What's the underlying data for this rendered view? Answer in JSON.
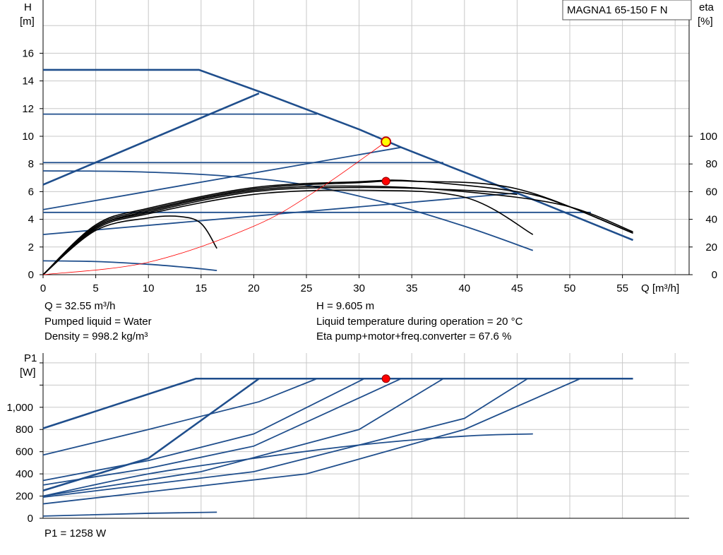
{
  "title": "MAGNA1 65-150 F N",
  "colors": {
    "curve_blue": "#1f4e8c",
    "eta_black": "#000000",
    "system_curve": "#ff0000",
    "grid": "#c8c8c8",
    "op_point_fill": "#ff0000",
    "op_point_yellow": "#ffff00"
  },
  "info": {
    "q": "Q = 32.55 m³/h",
    "h": "H = 9.605 m",
    "liquid": "Pumped liquid = Water",
    "temp": "Liquid temperature during operation = 20 °C",
    "density": "Density = 998.2 kg/m³",
    "eta": "Eta pump+motor+freq.converter = 67.6 %",
    "p1": "P1 = 1258 W"
  },
  "chart_data": [
    {
      "type": "line",
      "title": "MAGNA1 65-150 F N",
      "ylabel_left": "H",
      "ylabel_left_unit": "[m]",
      "ylabel_right": "eta",
      "ylabel_right_unit": "[%]",
      "xlabel": "Q [m³/h]",
      "xlim": [
        0,
        60
      ],
      "ylim": [
        0,
        20
      ],
      "y2lim": [
        0,
        200
      ],
      "grid": true,
      "xticks": [
        "0",
        "5",
        "10",
        "15",
        "20",
        "25",
        "30",
        "35",
        "40",
        "45",
        "50",
        "55"
      ],
      "yticks": [
        "0",
        "2",
        "4",
        "6",
        "8",
        "10",
        "12",
        "14",
        "16"
      ],
      "y2ticks": [
        "0",
        "20",
        "40",
        "60",
        "80",
        "100"
      ],
      "head_curves": [
        {
          "kind": "max",
          "points": [
            [
              0,
              14.8
            ],
            [
              14.8,
              14.8
            ],
            [
              21,
              13.1
            ],
            [
              30,
              10.5
            ],
            [
              34,
              9.2
            ],
            [
              45,
              5.9
            ],
            [
              56,
              2.5
            ]
          ]
        },
        {
          "kind": "const-curve",
          "points": [
            [
              0,
              11.6
            ],
            [
              26,
              11.6
            ]
          ]
        },
        {
          "kind": "const-curve",
          "points": [
            [
              0,
              8.1
            ],
            [
              38,
              8.1
            ]
          ]
        },
        {
          "kind": "const-curve",
          "points": [
            [
              0,
              4.5
            ],
            [
              52,
              4.5
            ]
          ]
        },
        {
          "kind": "prop-pressure",
          "points": [
            [
              0,
              6.5
            ],
            [
              20.5,
              13.1
            ]
          ]
        },
        {
          "kind": "prop-pressure",
          "points": [
            [
              0,
              4.7
            ],
            [
              34,
              9.2
            ]
          ]
        },
        {
          "kind": "prop-pressure",
          "points": [
            [
              0,
              2.9
            ],
            [
              45,
              5.9
            ]
          ]
        },
        {
          "kind": "curve",
          "points": [
            [
              0,
              7.5
            ],
            [
              8,
              7.45
            ],
            [
              16,
              7.2
            ],
            [
              24,
              6.6
            ],
            [
              32,
              5.3
            ],
            [
              40,
              3.5
            ],
            [
              46.5,
              1.75
            ]
          ]
        },
        {
          "kind": "curve",
          "points": [
            [
              0,
              1.0
            ],
            [
              5,
              0.95
            ],
            [
              10,
              0.75
            ],
            [
              14,
              0.5
            ],
            [
              16.5,
              0.3
            ]
          ]
        }
      ],
      "efficiency_curves": [
        {
          "points": [
            [
              0,
              0
            ],
            [
              5,
              32
            ],
            [
              10,
              41
            ],
            [
              13,
              42
            ],
            [
              15,
              37
            ],
            [
              16.5,
              19
            ]
          ]
        },
        {
          "points": [
            [
              0,
              0
            ],
            [
              5,
              33
            ],
            [
              10,
              44
            ],
            [
              20,
              58
            ],
            [
              30,
              61
            ],
            [
              40,
              56
            ],
            [
              46.5,
              29
            ]
          ]
        },
        {
          "points": [
            [
              0,
              0
            ],
            [
              5,
              34
            ],
            [
              10,
              45
            ],
            [
              20,
              60
            ],
            [
              30,
              63
            ],
            [
              40,
              61
            ],
            [
              45,
              58
            ]
          ]
        },
        {
          "points": [
            [
              0,
              0
            ],
            [
              5,
              35
            ],
            [
              10,
              47
            ],
            [
              20,
              62
            ],
            [
              30,
              66.5
            ],
            [
              35,
              67.5
            ],
            [
              45,
              62
            ],
            [
              56,
              30
            ]
          ]
        },
        {
          "points": [
            [
              0,
              0
            ],
            [
              5,
              36
            ],
            [
              10,
              48
            ],
            [
              20,
              63
            ],
            [
              30,
              67.2
            ],
            [
              35,
              67.8
            ],
            [
              45,
              60
            ],
            [
              50,
              49
            ],
            [
              56,
              30
            ]
          ]
        },
        {
          "points": [
            [
              0,
              0
            ],
            [
              5,
              34
            ],
            [
              10,
              46
            ],
            [
              20,
              61
            ],
            [
              30,
              64
            ],
            [
              40,
              60
            ],
            [
              49.5,
              50
            ],
            [
              56,
              31
            ]
          ]
        }
      ],
      "system_curve": {
        "points": [
          [
            0,
            0
          ],
          [
            10,
            0.9
          ],
          [
            20,
            3.5
          ],
          [
            26,
            6.1
          ],
          [
            32.55,
            9.605
          ]
        ]
      },
      "operating_point": {
        "q": 32.55,
        "h": 9.605,
        "eta": 67.6
      }
    },
    {
      "type": "line",
      "ylabel": "P1",
      "ylabel_unit": "[W]",
      "xlim": [
        0,
        60
      ],
      "ylim": [
        0,
        1400
      ],
      "grid": true,
      "yticks": [
        "0",
        "200",
        "400",
        "600",
        "800",
        "1,000"
      ],
      "power_curves": [
        {
          "points": [
            [
              0,
              810
            ],
            [
              14.5,
              1258
            ],
            [
              56,
              1258
            ]
          ]
        },
        {
          "points": [
            [
              0,
              570
            ],
            [
              10,
              800
            ],
            [
              20.5,
              1050
            ],
            [
              26,
              1258
            ]
          ]
        },
        {
          "points": [
            [
              0,
              340
            ],
            [
              10,
              520
            ],
            [
              20,
              760
            ],
            [
              30.5,
              1258
            ]
          ]
        },
        {
          "points": [
            [
              0,
              300
            ],
            [
              10,
              450
            ],
            [
              20,
              650
            ],
            [
              34,
              1258
            ]
          ]
        },
        {
          "points": [
            [
              0,
              200
            ],
            [
              15,
              420
            ],
            [
              30,
              800
            ],
            [
              38,
              1258
            ]
          ]
        },
        {
          "points": [
            [
              0,
              190
            ],
            [
              20,
              420
            ],
            [
              40,
              900
            ],
            [
              46,
              1258
            ]
          ]
        },
        {
          "points": [
            [
              0,
              130
            ],
            [
              25,
              400
            ],
            [
              40,
              800
            ],
            [
              51,
              1258
            ]
          ]
        },
        {
          "points": [
            [
              0,
              250
            ],
            [
              10,
              540
            ],
            [
              20.5,
              1258
            ]
          ]
        },
        {
          "points": [
            [
              0,
              200
            ],
            [
              10,
              400
            ],
            [
              20,
              540
            ],
            [
              30,
              660
            ],
            [
              40,
              740
            ],
            [
              46.5,
              760
            ]
          ]
        },
        {
          "points": [
            [
              0,
              20
            ],
            [
              10,
              45
            ],
            [
              16.5,
              55
            ]
          ]
        }
      ],
      "operating_point": {
        "q": 32.55,
        "p1": 1258
      }
    }
  ]
}
